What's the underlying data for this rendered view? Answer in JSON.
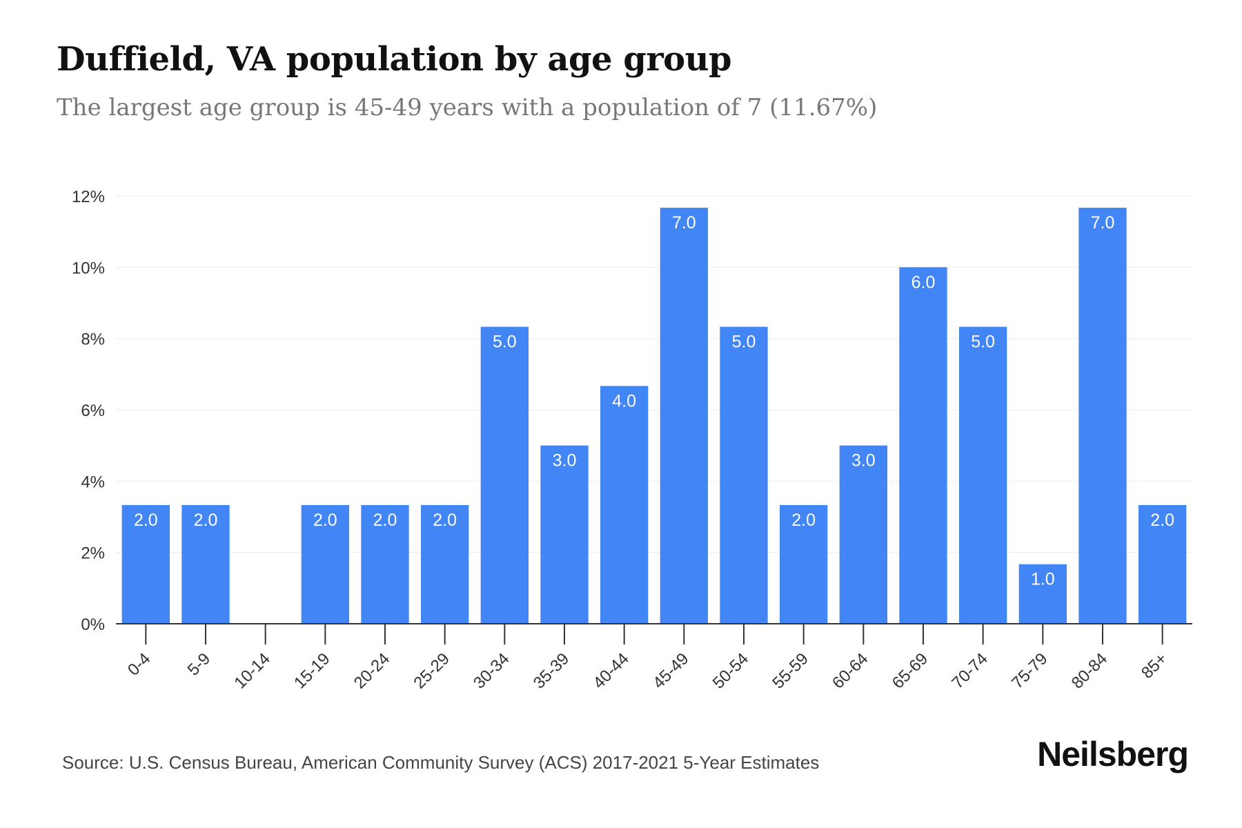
{
  "title": "Duffield, VA population by age group",
  "subtitle": "The largest age group is 45-49 years with a population of 7 (11.67%)",
  "source": "Source: U.S. Census Bureau, American Community Survey (ACS) 2017-2021 5-Year Estimates",
  "brand": "Neilsberg",
  "colors": {
    "bar": "#4285f4",
    "grid": "#ebebeb",
    "axis": "#333333",
    "tick_text": "#333333",
    "bar_label": "#ffffff"
  },
  "chart_data": {
    "type": "bar",
    "categories": [
      "0-4",
      "5-9",
      "10-14",
      "15-19",
      "20-24",
      "25-29",
      "30-34",
      "35-39",
      "40-44",
      "45-49",
      "50-54",
      "55-59",
      "60-64",
      "65-69",
      "70-74",
      "75-79",
      "80-84",
      "85+"
    ],
    "values": [
      3.33,
      3.33,
      0,
      3.33,
      3.33,
      3.33,
      8.33,
      5.0,
      6.67,
      11.67,
      8.33,
      3.33,
      5.0,
      10.0,
      8.33,
      1.67,
      11.67,
      3.33
    ],
    "labels": [
      "2.0",
      "2.0",
      "",
      "2.0",
      "2.0",
      "2.0",
      "5.0",
      "3.0",
      "4.0",
      "7.0",
      "5.0",
      "2.0",
      "3.0",
      "6.0",
      "5.0",
      "1.0",
      "7.0",
      "2.0"
    ],
    "yticks": [
      "0%",
      "2%",
      "4%",
      "6%",
      "8%",
      "10%",
      "12%"
    ],
    "ylim": [
      0,
      12
    ],
    "grid": true
  }
}
